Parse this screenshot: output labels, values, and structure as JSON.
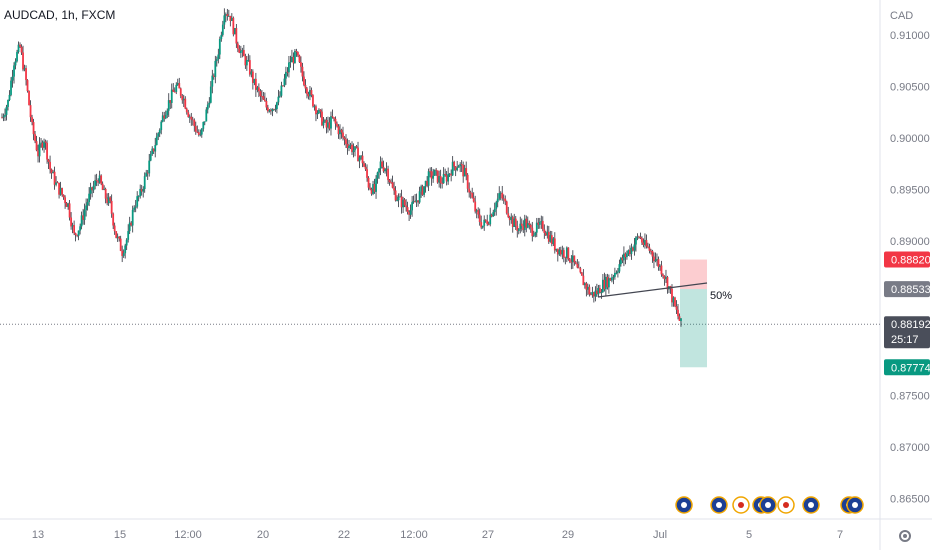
{
  "chart_data": {
    "type": "candlestick",
    "title": "AUDCAD, 1h, FXCM",
    "currency_label": "CAD",
    "y_ticks": [
      "0.91000",
      "0.90500",
      "0.90000",
      "0.89500",
      "0.89000",
      "0.87500",
      "0.87000",
      "0.86500"
    ],
    "y_tick_values": [
      0.91,
      0.905,
      0.9,
      0.895,
      0.89,
      0.875,
      0.87,
      0.865
    ],
    "ylim": [
      0.8635,
      0.9135
    ],
    "x_ticks": [
      "13",
      "15",
      "12:00",
      "20",
      "22",
      "12:00",
      "27",
      "29",
      "Jul",
      "5",
      "7"
    ],
    "grid": false,
    "price_tags": {
      "stop": {
        "label": "0.88820",
        "value": 0.8882,
        "color": "#f23645"
      },
      "entry": {
        "label": "0.88533",
        "value": 0.88533,
        "color": "#787b86"
      },
      "current": {
        "label": "0.88192",
        "countdown": "25:17",
        "value": 0.88192,
        "color": "#4a4e5a"
      },
      "target": {
        "label": "0.87774",
        "value": 0.87774,
        "color": "#089981"
      }
    },
    "annotation": {
      "text": "50%"
    },
    "colors": {
      "up": "#089981",
      "down": "#f23645",
      "wick": "#2a2e39",
      "trendline": "#434651"
    },
    "close_path": [
      0.902,
      0.9035,
      0.9075,
      0.9088,
      0.9055,
      0.901,
      0.8985,
      0.9,
      0.897,
      0.8955,
      0.8945,
      0.8935,
      0.8905,
      0.8915,
      0.8935,
      0.895,
      0.8962,
      0.8945,
      0.8935,
      0.8905,
      0.889,
      0.8905,
      0.8935,
      0.8945,
      0.8965,
      0.8985,
      0.9005,
      0.9025,
      0.9038,
      0.905,
      0.9042,
      0.9025,
      0.9012,
      0.9,
      0.9025,
      0.9055,
      0.9085,
      0.9125,
      0.9118,
      0.9095,
      0.908,
      0.907,
      0.9052,
      0.904,
      0.903,
      0.903,
      0.9036,
      0.9056,
      0.9075,
      0.908,
      0.906,
      0.9045,
      0.9032,
      0.902,
      0.901,
      0.9018,
      0.9008,
      0.8998,
      0.8992,
      0.8985,
      0.8978,
      0.8955,
      0.8948,
      0.8975,
      0.897,
      0.895,
      0.894,
      0.8935,
      0.893,
      0.894,
      0.895,
      0.8962,
      0.8965,
      0.8958,
      0.8962,
      0.8972,
      0.8975,
      0.8965,
      0.8945,
      0.8925,
      0.8915,
      0.8922,
      0.8935,
      0.8945,
      0.8932,
      0.8918,
      0.8912,
      0.8918,
      0.891,
      0.8912,
      0.8915,
      0.8905,
      0.8895,
      0.889,
      0.8888,
      0.888,
      0.8868,
      0.8858,
      0.8848,
      0.885,
      0.8858,
      0.8862,
      0.887,
      0.888,
      0.8888,
      0.8895,
      0.8905,
      0.8895,
      0.889,
      0.888,
      0.887,
      0.8855,
      0.8835,
      0.8819
    ]
  },
  "events": [
    "au-flag-icon",
    "au-flag-icon",
    "ca-flag-icon",
    "au-flag-icon",
    "au-flag-icon",
    "ca-flag-icon",
    "au-flag-icon",
    "au-flag-icon",
    "au-flag-icon"
  ],
  "settings_icon": "gear-icon"
}
